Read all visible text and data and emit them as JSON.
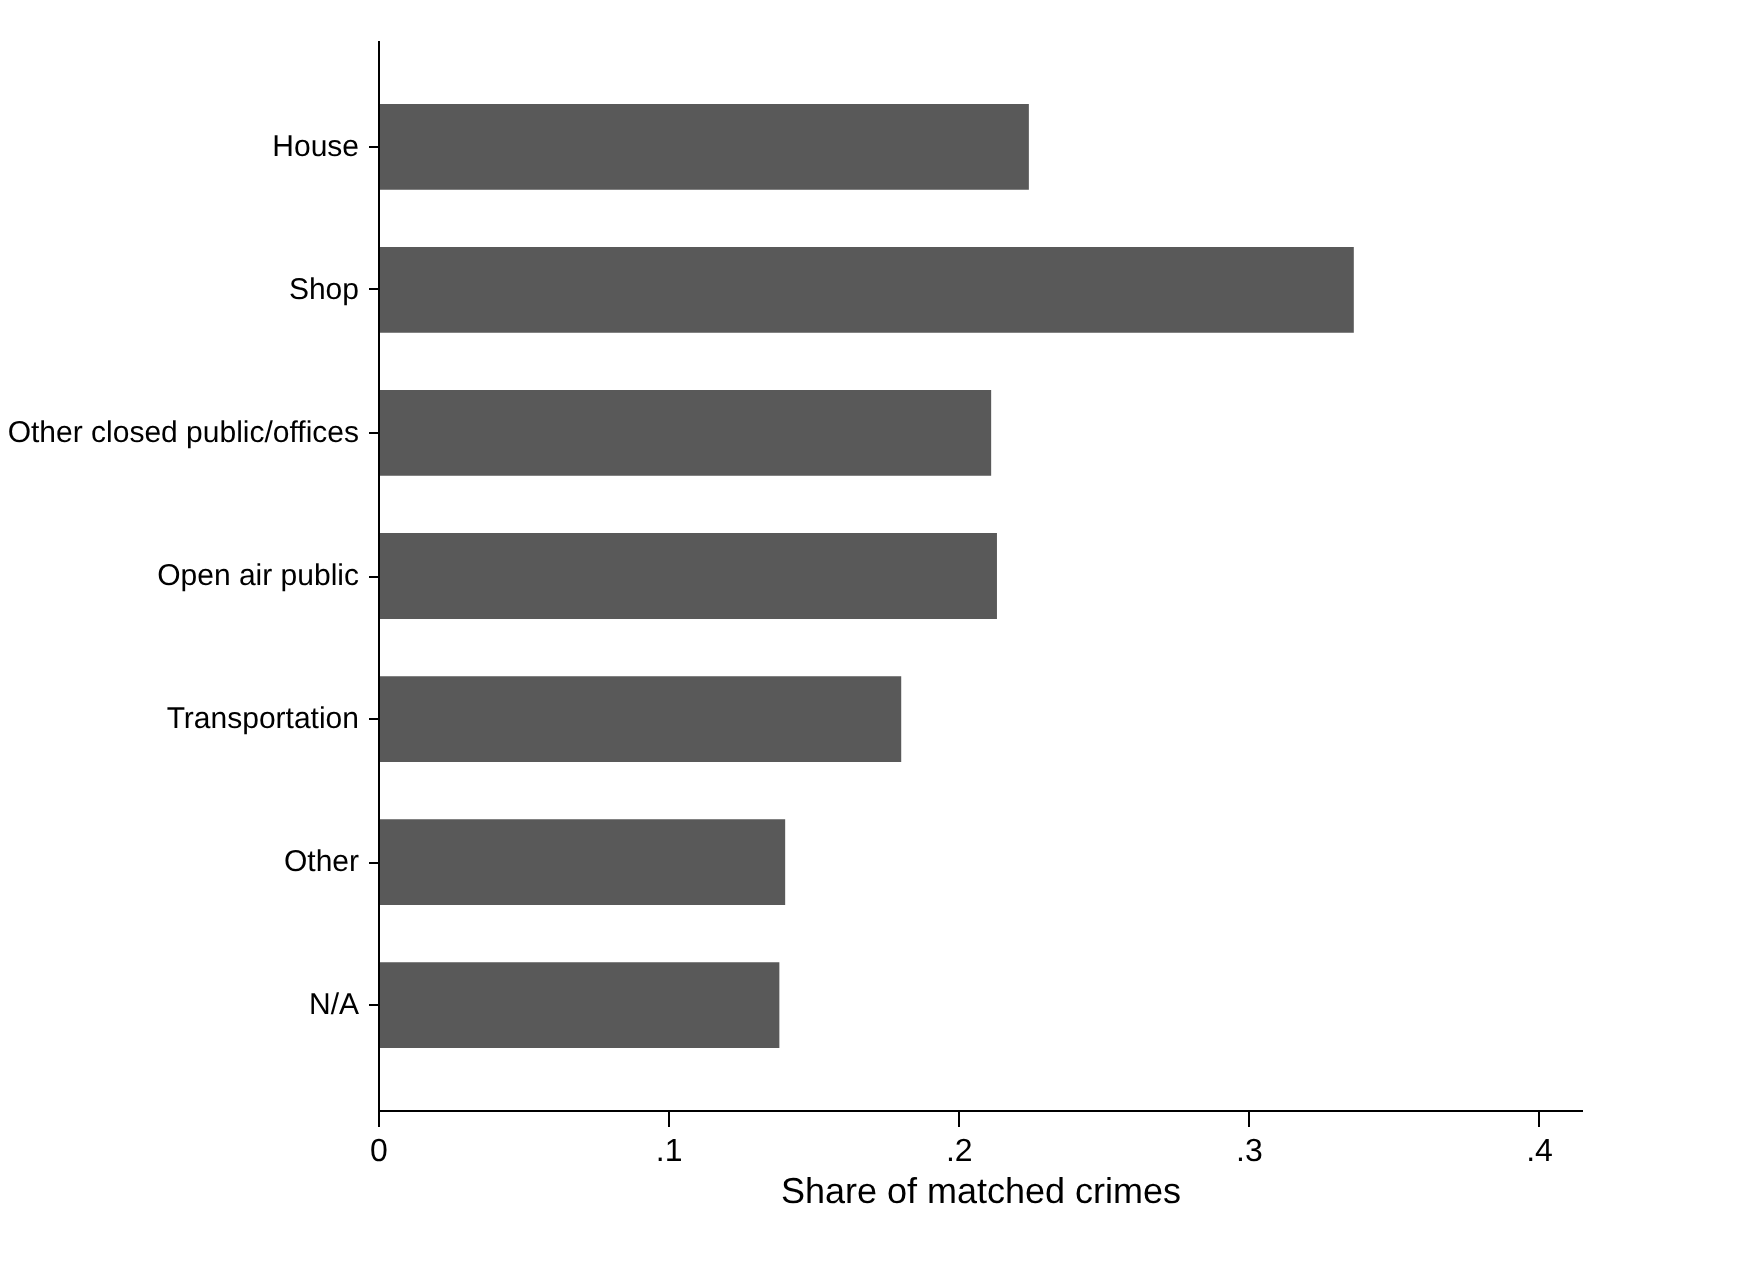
{
  "chart_data": {
    "type": "bar",
    "orientation": "horizontal",
    "xlabel": "Share of matched crimes",
    "categories": [
      "House",
      "Shop",
      "Other closed public/offices",
      "Open air public",
      "Transportation",
      "Other",
      "N/A"
    ],
    "values": [
      0.224,
      0.336,
      0.211,
      0.213,
      0.18,
      0.14,
      0.138
    ],
    "color": "#595959",
    "xlim": [
      0,
      0.415
    ],
    "xticks": [
      0,
      {
        "value": 0.1,
        "label": ".1"
      },
      {
        "value": 0.2,
        "label": ".2"
      },
      {
        "value": 0.3,
        "label": ".3"
      },
      {
        "value": 0.4,
        "label": ".4"
      }
    ],
    "grid": false
  }
}
